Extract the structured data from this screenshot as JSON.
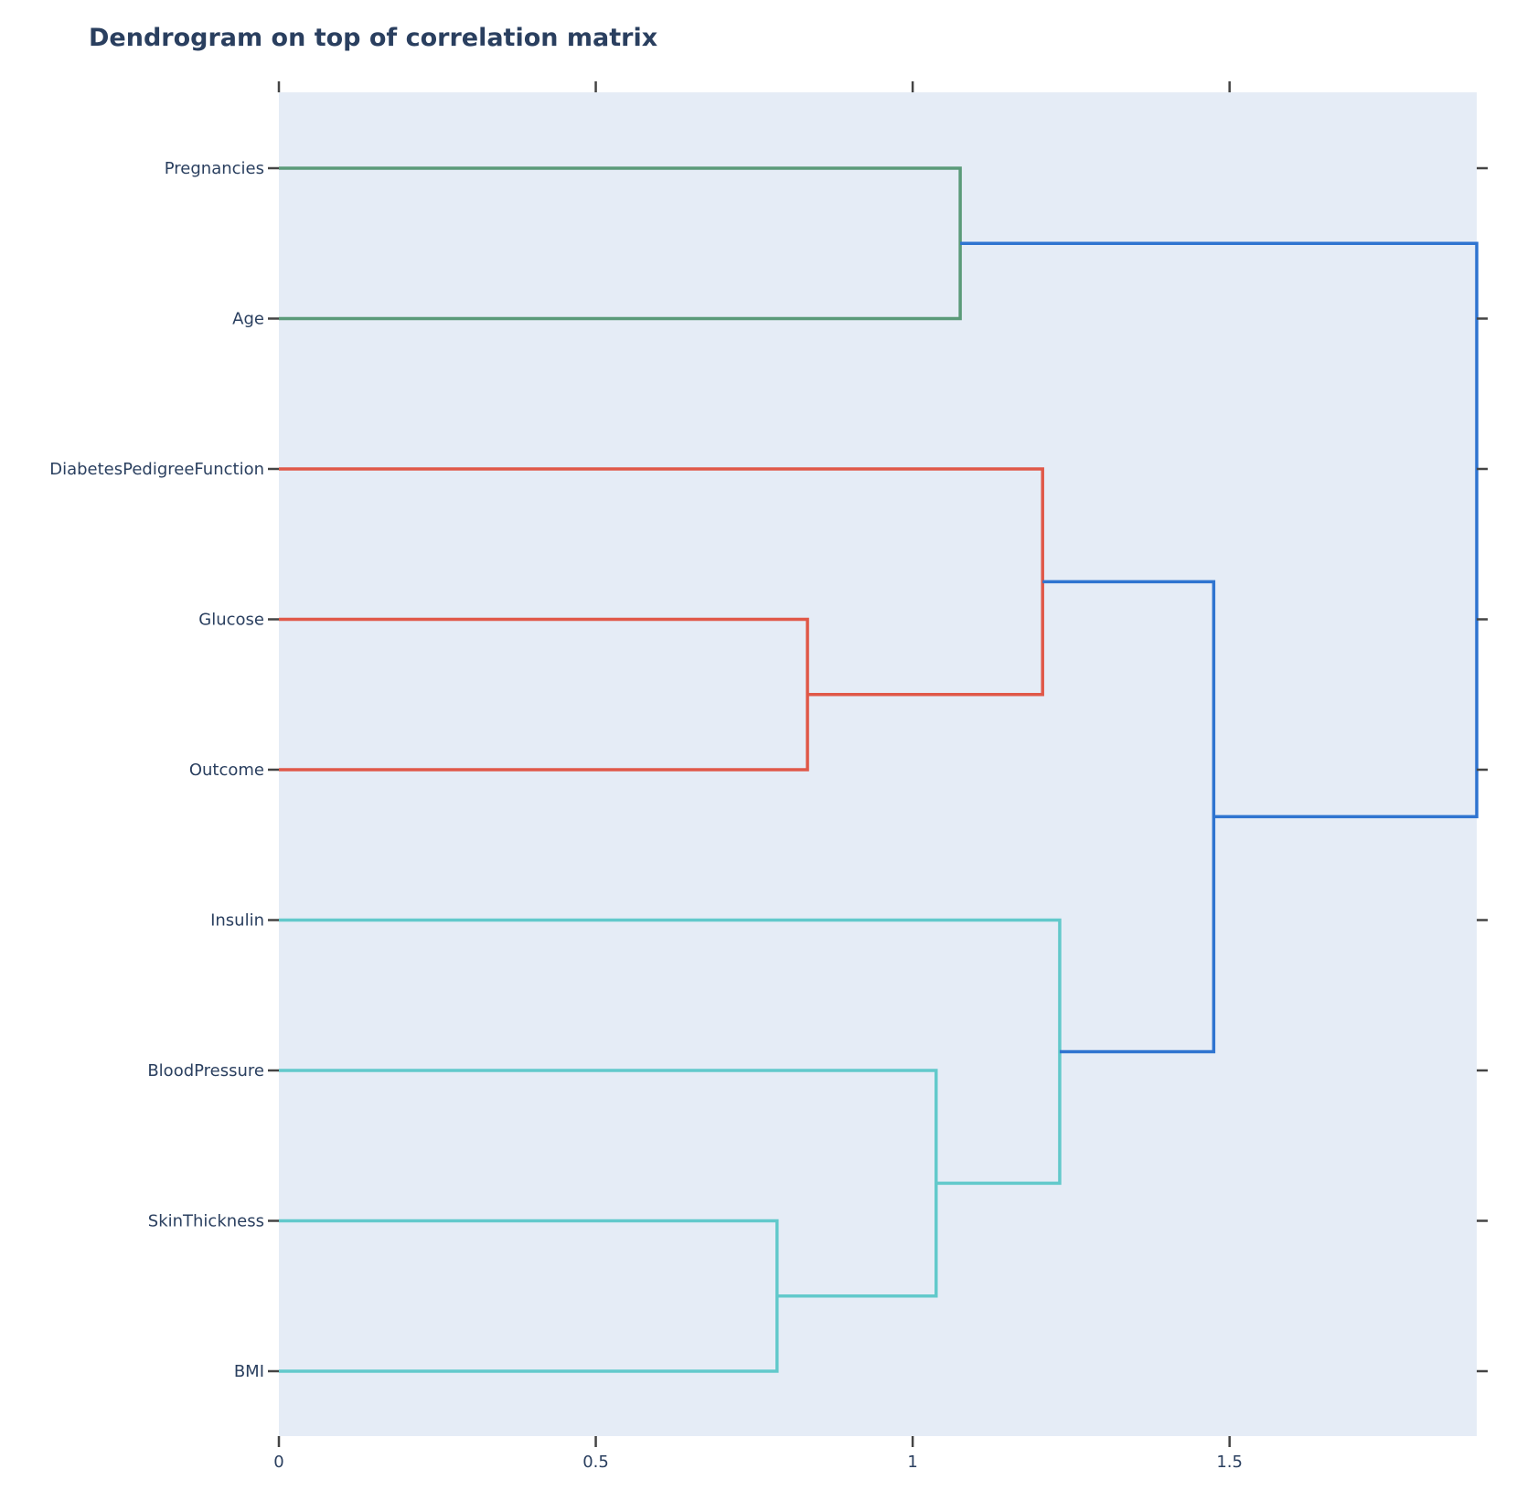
{
  "chart_data": {
    "type": "dendrogram",
    "title": "Dendrogram on top of correlation matrix",
    "orientation": "horizontal",
    "xlim": [
      0,
      1.89
    ],
    "x_ticks": [
      {
        "value": 0,
        "label": "0"
      },
      {
        "value": 0.5,
        "label": "0.5"
      },
      {
        "value": 1,
        "label": "1"
      },
      {
        "value": 1.5,
        "label": "1.5"
      }
    ],
    "leaves": [
      "Pregnancies",
      "Age",
      "DiabetesPedigreeFunction",
      "Glucose",
      "Outcome",
      "Insulin",
      "BloodPressure",
      "SkinThickness",
      "BMI"
    ],
    "merges": [
      {
        "x": [
          0,
          1.075,
          1.075,
          0
        ],
        "y": [
          0,
          0,
          1,
          1
        ],
        "color": "#5a9a79"
      },
      {
        "x": [
          0,
          0.834,
          0.834,
          0
        ],
        "y": [
          3,
          3,
          4,
          4
        ],
        "color": "#e05848"
      },
      {
        "x": [
          0,
          1.205,
          1.205,
          0.834
        ],
        "y": [
          2,
          2,
          3.5,
          3.5
        ],
        "color": "#e05848"
      },
      {
        "x": [
          0,
          0.786,
          0.786,
          0
        ],
        "y": [
          7,
          7,
          8,
          8
        ],
        "color": "#62c9cb"
      },
      {
        "x": [
          0,
          1.037,
          1.037,
          0.786
        ],
        "y": [
          6,
          6,
          7.5,
          7.5
        ],
        "color": "#62c9cb"
      },
      {
        "x": [
          0,
          1.232,
          1.232,
          1.037
        ],
        "y": [
          5,
          5,
          6.75,
          6.75
        ],
        "color": "#62c9cb"
      },
      {
        "x": [
          1.205,
          1.475,
          1.475,
          1.232
        ],
        "y": [
          2.75,
          2.75,
          5.875,
          5.875
        ],
        "color": "#2f74d0"
      },
      {
        "x": [
          1.075,
          1.89,
          1.89,
          1.475
        ],
        "y": [
          0.5,
          0.5,
          4.3125,
          4.3125
        ],
        "color": "#2f74d0"
      }
    ],
    "colors": {
      "plot_background": "#e5ecf6",
      "text": "#2a3f5f",
      "tick": "#444444"
    },
    "grid": false,
    "legend": "none"
  }
}
